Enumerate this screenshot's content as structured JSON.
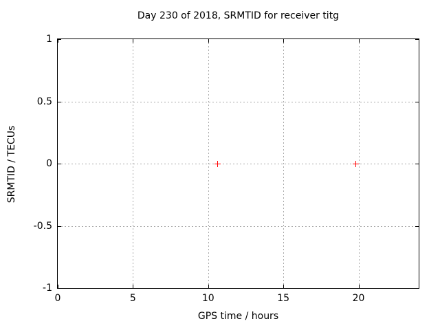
{
  "chart_data": {
    "type": "scatter",
    "title": "Day 230 of 2018, SRMTID for receiver titg",
    "xlabel": "GPS time / hours",
    "ylabel": "SRMTID / TECUs",
    "xlim": [
      0,
      24
    ],
    "ylim": [
      -1,
      1
    ],
    "xticks": [
      0,
      5,
      10,
      15,
      20
    ],
    "xtick_labels": [
      "0",
      "5",
      "10",
      "15",
      "20"
    ],
    "yticks": [
      -1,
      -0.5,
      0,
      0.5,
      1
    ],
    "ytick_labels": [
      "-1",
      "-0.5",
      "0",
      "0.5",
      "1"
    ],
    "grid": true,
    "legend_position": "none",
    "series": [
      {
        "name": "SRMTID",
        "marker": "plus",
        "color": "#ff0000",
        "points": [
          [
            10.6,
            0.0
          ],
          [
            19.8,
            0.0
          ]
        ]
      }
    ],
    "colors": {
      "background": "#ffffff",
      "plot_border": "#000000",
      "grid": "#a8a8a8",
      "text": "#000000"
    }
  }
}
